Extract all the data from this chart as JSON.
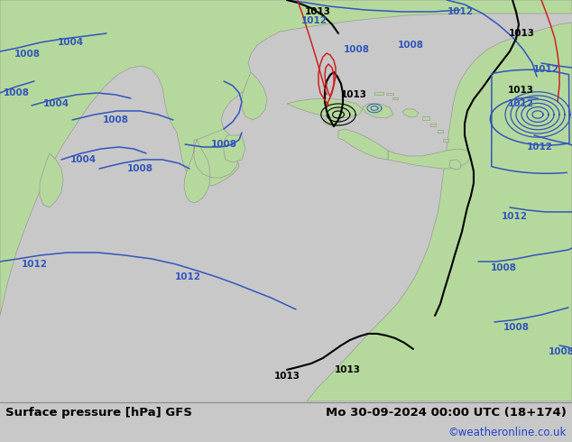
{
  "title_left": "Surface pressure [hPa] GFS",
  "title_right": "Mo 30-09-2024 00:00 UTC (18+174)",
  "credit": "©weatheronline.co.uk",
  "land_color": "#b5d99c",
  "land_edge": "#999999",
  "ocean_color": "#e0e0e0",
  "footer_bg": "#c8c8c8",
  "blue": "#3355bb",
  "black": "#000000",
  "red": "#cc2222",
  "lw": 1.1,
  "lw_thick": 1.5,
  "font_size_title": 9.5,
  "font_size_credit": 8.5,
  "font_size_label": 7.5
}
